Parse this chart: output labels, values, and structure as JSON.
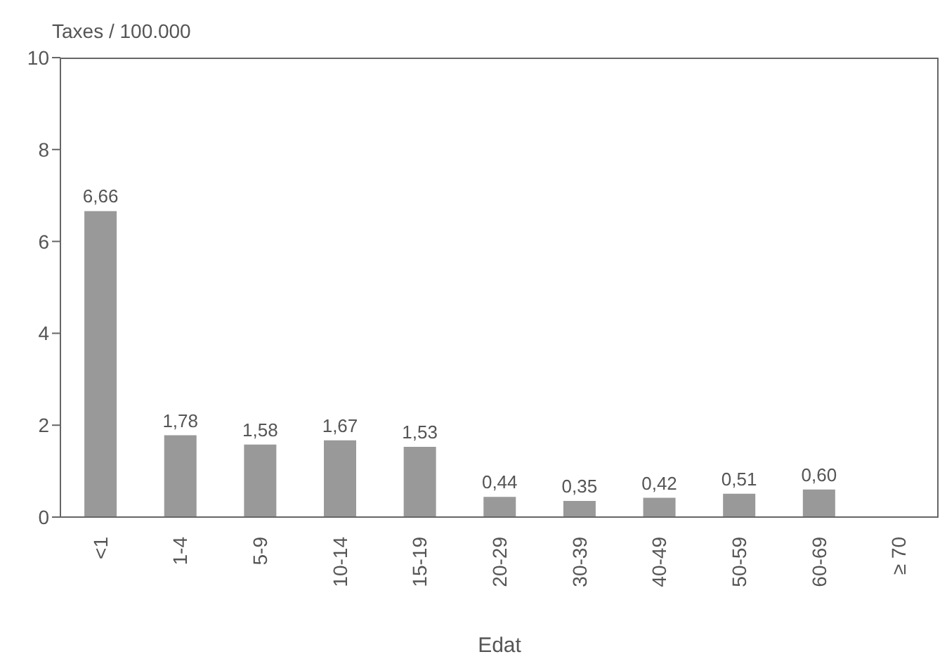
{
  "chart_data": {
    "type": "bar",
    "ylabel": "Taxes / 100.000",
    "xlabel": "Edat",
    "categories": [
      "<1",
      "1-4",
      "5-9",
      "10-14",
      "15-19",
      "20-29",
      "30-39",
      "40-49",
      "50-59",
      "60-69",
      "≥ 70"
    ],
    "values": [
      6.66,
      1.78,
      1.58,
      1.67,
      1.53,
      0.44,
      0.35,
      0.42,
      0.51,
      0.6,
      null
    ],
    "value_labels": [
      "6,66",
      "1,78",
      "1,58",
      "1,67",
      "1,53",
      "0,44",
      "0,35",
      "0,42",
      "0,51",
      "0,60",
      null
    ],
    "color": "#999999",
    "ylim": [
      0,
      10
    ],
    "yticks": [
      0,
      2,
      4,
      6,
      8,
      10
    ]
  }
}
